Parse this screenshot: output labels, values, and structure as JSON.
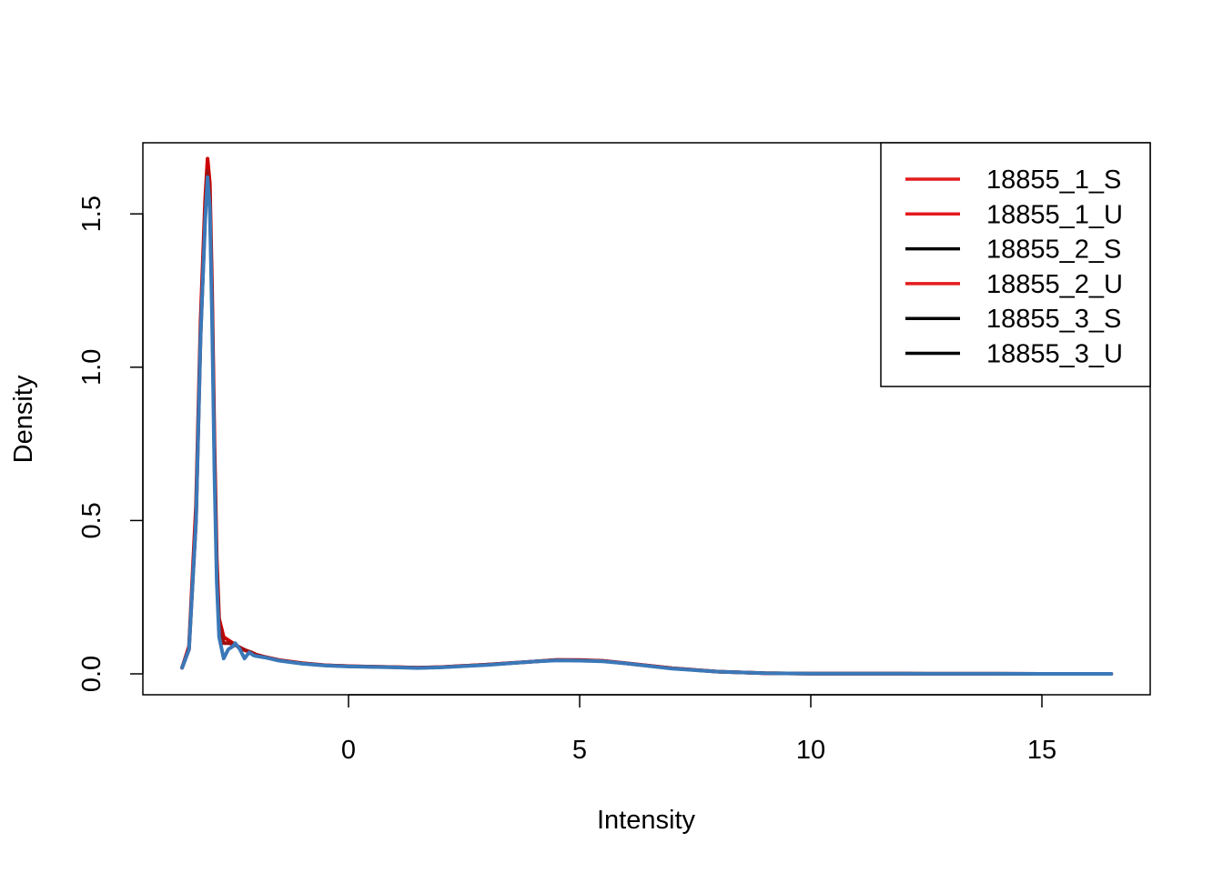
{
  "chart_data": {
    "type": "line",
    "title": "",
    "xlabel": "Intensity",
    "ylabel": "Density",
    "xlim": [
      -3.6,
      16.5
    ],
    "ylim": [
      0,
      1.6
    ],
    "x_ticks": [
      0,
      5,
      10,
      15
    ],
    "y_ticks": [
      0.0,
      0.5,
      1.0,
      1.5
    ],
    "x_tick_labels": [
      "0",
      "5",
      "10",
      "15"
    ],
    "y_tick_labels": [
      "0.0",
      "0.5",
      "1.0",
      "1.5"
    ],
    "grid": false,
    "legend_position": "top-right",
    "legend": [
      {
        "label": "18855_1_S",
        "color": "#e41a1c"
      },
      {
        "label": "18855_1_U",
        "color": "#e41a1c"
      },
      {
        "label": "18855_2_S",
        "color": "#000000"
      },
      {
        "label": "18855_2_U",
        "color": "#e41a1c"
      },
      {
        "label": "18855_3_S",
        "color": "#000000"
      },
      {
        "label": "18855_3_U",
        "color": "#000000"
      }
    ],
    "series": [
      {
        "color": "#cc0000",
        "x": [
          -3.6,
          -3.45,
          -3.3,
          -3.2,
          -3.1,
          -3.05,
          -3.0,
          -2.95,
          -2.9,
          -2.85,
          -2.8,
          -2.7,
          -2.6,
          -2.5,
          -2.4,
          -2.3,
          -2.2,
          -2.1,
          -2.0,
          -1.8,
          -1.5,
          -1.0,
          -0.5,
          0.0,
          1.0,
          1.5,
          2.0,
          3.0,
          4.0,
          4.5,
          5.0,
          5.5,
          6.0,
          7.0,
          8.0,
          9.0,
          10.0,
          12.0,
          14.0,
          16.5
        ],
        "y": [
          0.02,
          0.09,
          0.55,
          1.15,
          1.55,
          1.68,
          1.6,
          1.25,
          0.75,
          0.38,
          0.18,
          0.12,
          0.11,
          0.1,
          0.09,
          0.08,
          0.075,
          0.07,
          0.063,
          0.055,
          0.045,
          0.035,
          0.028,
          0.025,
          0.022,
          0.02,
          0.022,
          0.03,
          0.04,
          0.045,
          0.045,
          0.042,
          0.035,
          0.018,
          0.007,
          0.002,
          0.001,
          0.0005,
          0.0002,
          0.0
        ]
      },
      {
        "color": "#a01010",
        "x": [
          -3.6,
          -3.45,
          -3.3,
          -3.2,
          -3.1,
          -3.05,
          -3.0,
          -2.95,
          -2.9,
          -2.85,
          -2.8,
          -2.7,
          -2.6,
          -2.5,
          -2.4,
          -2.3,
          -2.2,
          -2.1,
          -2.0,
          -1.8,
          -1.5,
          -1.0,
          -0.5,
          0.0,
          1.0,
          1.5,
          2.0,
          3.0,
          4.0,
          4.5,
          5.0,
          5.5,
          6.0,
          7.0,
          8.0,
          9.0,
          10.0,
          12.0,
          14.0,
          16.5
        ],
        "y": [
          0.02,
          0.08,
          0.5,
          1.1,
          1.5,
          1.64,
          1.55,
          1.2,
          0.7,
          0.34,
          0.16,
          0.1,
          0.1,
          0.098,
          0.09,
          0.082,
          0.075,
          0.07,
          0.062,
          0.054,
          0.044,
          0.034,
          0.028,
          0.025,
          0.022,
          0.02,
          0.022,
          0.03,
          0.04,
          0.045,
          0.044,
          0.042,
          0.034,
          0.018,
          0.007,
          0.002,
          0.001,
          0.0005,
          0.0002,
          0.0
        ]
      },
      {
        "color": "#3a78b8",
        "x": [
          -3.6,
          -3.45,
          -3.3,
          -3.2,
          -3.1,
          -3.05,
          -3.0,
          -2.95,
          -2.9,
          -2.85,
          -2.8,
          -2.7,
          -2.6,
          -2.5,
          -2.45,
          -2.35,
          -2.25,
          -2.15,
          -2.05,
          -2.0,
          -1.8,
          -1.5,
          -1.0,
          -0.5,
          0.0,
          1.0,
          1.5,
          2.0,
          3.0,
          4.0,
          4.5,
          5.0,
          5.5,
          6.0,
          7.0,
          8.0,
          9.0,
          10.0,
          12.0,
          14.0,
          16.5
        ],
        "y": [
          0.02,
          0.08,
          0.5,
          1.1,
          1.48,
          1.62,
          1.52,
          1.15,
          0.65,
          0.3,
          0.12,
          0.05,
          0.08,
          0.09,
          0.1,
          0.08,
          0.05,
          0.07,
          0.06,
          0.058,
          0.053,
          0.043,
          0.033,
          0.027,
          0.024,
          0.021,
          0.019,
          0.021,
          0.029,
          0.04,
          0.044,
          0.043,
          0.041,
          0.034,
          0.017,
          0.007,
          0.002,
          0.001,
          0.0005,
          0.0002,
          0.0
        ]
      }
    ]
  }
}
